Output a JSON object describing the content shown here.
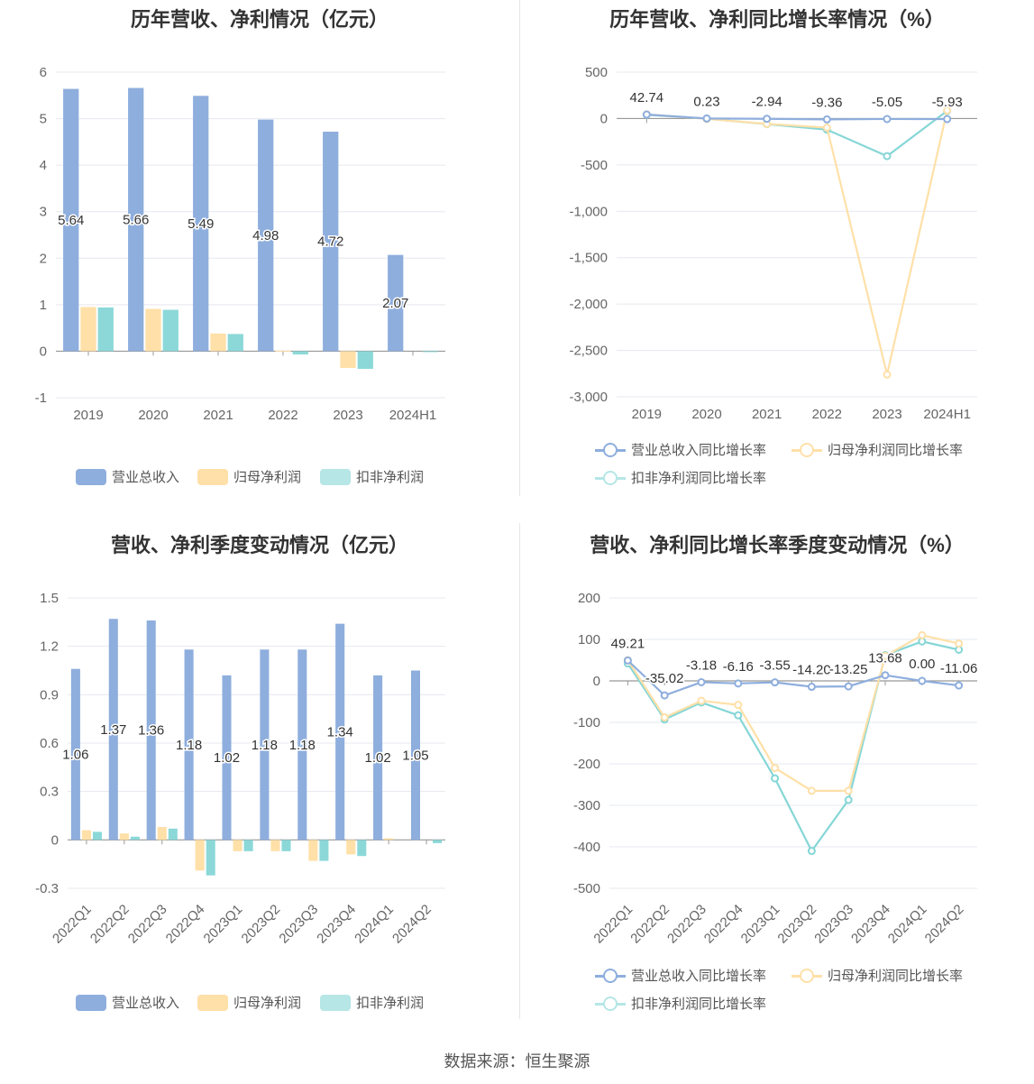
{
  "colors": {
    "revenue": "#8eaedd",
    "parent_profit": "#ffe0a8",
    "deducted_profit": "#86d6d6",
    "grid": "#e6e8ef",
    "axis": "#999999",
    "text": "#666666"
  },
  "legend_bar": [
    "营业总收入",
    "归母净利润",
    "扣非净利润"
  ],
  "legend_line": [
    "营业总收入同比增长率",
    "归母净利润同比增长率",
    "扣非净利润同比增长率"
  ],
  "source_note": "数据来源：恒生聚源",
  "chart_data": [
    {
      "id": "annual_values",
      "type": "bar",
      "title": "历年营收、净利情况（亿元）",
      "categories": [
        "2019",
        "2020",
        "2021",
        "2022",
        "2023",
        "2024H1"
      ],
      "ylim": [
        -1,
        6
      ],
      "yticks": [
        "6",
        "5",
        "4",
        "3",
        "2",
        "1",
        "0",
        "-1"
      ],
      "series": [
        {
          "name": "营业总收入",
          "values": [
            5.64,
            5.66,
            5.49,
            4.98,
            4.72,
            2.07
          ],
          "labels": [
            "5.64",
            "5.66",
            "5.49",
            "4.98",
            "4.72",
            "2.07"
          ]
        },
        {
          "name": "归母净利润",
          "values": [
            0.95,
            0.91,
            0.38,
            0.01,
            -0.36,
            0.0
          ]
        },
        {
          "name": "扣非净利润",
          "values": [
            0.94,
            0.89,
            0.37,
            -0.07,
            -0.38,
            -0.01
          ]
        }
      ],
      "legend": "bottom",
      "grid": true
    },
    {
      "id": "annual_growth",
      "type": "line",
      "title": "历年营收、净利同比增长率情况（%）",
      "categories": [
        "2019",
        "2020",
        "2021",
        "2022",
        "2023",
        "2024H1"
      ],
      "ylim": [
        -3000,
        500
      ],
      "yticks": [
        "500",
        "0",
        "-500",
        "-1,000",
        "-1,500",
        "-2,000",
        "-2,500",
        "-3,000"
      ],
      "series": [
        {
          "name": "营业总收入同比增长率",
          "values": [
            42.74,
            0.23,
            -2.94,
            -9.36,
            -5.05,
            -5.93
          ],
          "labels": [
            "42.74",
            "0.23",
            "-2.94",
            "-9.36",
            "-5.05",
            "-5.93"
          ]
        },
        {
          "name": "归母净利润同比增长率",
          "values": [
            45,
            -4,
            -58,
            -98,
            -2760,
            88
          ]
        },
        {
          "name": "扣非净利润同比增长率",
          "values": [
            40,
            -2,
            -60,
            -120,
            -405,
            82
          ]
        }
      ],
      "legend": "bottom",
      "grid": true
    },
    {
      "id": "quarterly_values",
      "type": "bar",
      "title": "营收、净利季度变动情况（亿元）",
      "categories": [
        "2022Q1",
        "2022Q2",
        "2022Q3",
        "2022Q4",
        "2023Q1",
        "2023Q2",
        "2023Q3",
        "2023Q4",
        "2024Q1",
        "2024Q2"
      ],
      "ylim": [
        -0.3,
        1.5
      ],
      "yticks": [
        "1.5",
        "1.2",
        "0.9",
        "0.6",
        "0.3",
        "0",
        "-0.3"
      ],
      "series": [
        {
          "name": "营业总收入",
          "values": [
            1.06,
            1.37,
            1.36,
            1.18,
            1.02,
            1.18,
            1.18,
            1.34,
            1.02,
            1.05
          ],
          "labels": [
            "1.06",
            "1.37",
            "1.36",
            "1.18",
            "1.02",
            "1.18",
            "1.18",
            "1.34",
            "1.02",
            "1.05"
          ]
        },
        {
          "name": "归母净利润",
          "values": [
            0.06,
            0.04,
            0.08,
            -0.19,
            -0.07,
            -0.07,
            -0.13,
            -0.09,
            0.01,
            0.0
          ]
        },
        {
          "name": "扣非净利润",
          "values": [
            0.05,
            0.02,
            0.07,
            -0.22,
            -0.07,
            -0.07,
            -0.13,
            -0.1,
            0.0,
            -0.02
          ]
        }
      ],
      "legend": "bottom",
      "grid": true
    },
    {
      "id": "quarterly_growth",
      "type": "line",
      "title": "营收、净利同比增长率季度变动情况（%）",
      "categories": [
        "2022Q1",
        "2022Q2",
        "2022Q3",
        "2022Q4",
        "2023Q1",
        "2023Q2",
        "2023Q3",
        "2023Q4",
        "2024Q1",
        "2024Q2"
      ],
      "ylim": [
        -500,
        200
      ],
      "yticks": [
        "200",
        "100",
        "0",
        "-100",
        "-200",
        "-300",
        "-400",
        "-500"
      ],
      "series": [
        {
          "name": "营业总收入同比增长率",
          "values": [
            49.21,
            -35.02,
            -3.18,
            -6.16,
            -3.55,
            -14.2,
            -13.25,
            13.68,
            0.0,
            -11.06
          ],
          "labels": [
            "49.21",
            "-35.02",
            "-3.18",
            "-6.16",
            "-3.55",
            "-14.20",
            "-13.25",
            "13.68",
            "0.00",
            "-11.06"
          ]
        },
        {
          "name": "归母净利润同比增长率",
          "values": [
            50,
            -88,
            -48,
            -58,
            -210,
            -265,
            -265,
            60,
            110,
            90
          ]
        },
        {
          "name": "扣非净利润同比增长率",
          "values": [
            42,
            -93,
            -52,
            -83,
            -235,
            -410,
            -287,
            62,
            95,
            75
          ]
        }
      ],
      "legend": "bottom",
      "grid": true
    }
  ]
}
